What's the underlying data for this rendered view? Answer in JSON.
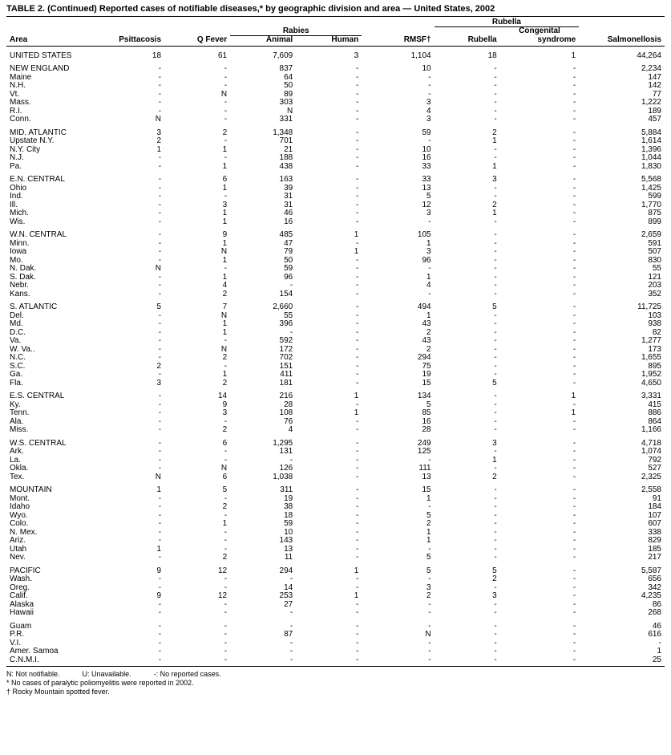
{
  "title": "TABLE 2. (Continued) Reported cases of notifiable diseases,* by geographic division and area — United States, 2002",
  "superheaders": {
    "rabies": "Rabies",
    "rubella": "Rubella"
  },
  "columns": [
    "Area",
    "Psittacosis",
    "Q Fever",
    "Animal",
    "Human",
    "RMSF†",
    "Rubella",
    "Congenital syndrome",
    "Salmonellosis"
  ],
  "groups": [
    [
      [
        "UNITED STATES",
        "18",
        "61",
        "7,609",
        "3",
        "1,104",
        "18",
        "1",
        "44,264"
      ]
    ],
    [
      [
        "NEW ENGLAND",
        "-",
        "-",
        "837",
        "-",
        "10",
        "-",
        "-",
        "2,234"
      ],
      [
        "Maine",
        "-",
        "-",
        "64",
        "-",
        "-",
        "-",
        "-",
        "147"
      ],
      [
        "N.H.",
        "-",
        "-",
        "50",
        "-",
        "-",
        "-",
        "-",
        "142"
      ],
      [
        "Vt.",
        "-",
        "N",
        "89",
        "-",
        "-",
        "-",
        "-",
        "77"
      ],
      [
        "Mass.",
        "-",
        "-",
        "303",
        "-",
        "3",
        "-",
        "-",
        "1,222"
      ],
      [
        "R.I.",
        "-",
        "-",
        "N",
        "-",
        "4",
        "-",
        "-",
        "189"
      ],
      [
        "Conn.",
        "N",
        "-",
        "331",
        "-",
        "3",
        "-",
        "-",
        "457"
      ]
    ],
    [
      [
        "MID. ATLANTIC",
        "3",
        "2",
        "1,348",
        "-",
        "59",
        "2",
        "-",
        "5,884"
      ],
      [
        "Upstate N.Y.",
        "2",
        "-",
        "701",
        "-",
        "-",
        "1",
        "-",
        "1,614"
      ],
      [
        "N.Y. City",
        "1",
        "1",
        "21",
        "-",
        "10",
        "-",
        "-",
        "1,396"
      ],
      [
        "N.J.",
        "-",
        "-",
        "188",
        "-",
        "16",
        "-",
        "-",
        "1,044"
      ],
      [
        "Pa.",
        "-",
        "1",
        "438",
        "-",
        "33",
        "1",
        "-",
        "1,830"
      ]
    ],
    [
      [
        "E.N. CENTRAL",
        "-",
        "6",
        "163",
        "-",
        "33",
        "3",
        "-",
        "5,568"
      ],
      [
        "Ohio",
        "-",
        "1",
        "39",
        "-",
        "13",
        "-",
        "-",
        "1,425"
      ],
      [
        "Ind.",
        "-",
        "-",
        "31",
        "-",
        "5",
        "-",
        "-",
        "599"
      ],
      [
        "Ill.",
        "-",
        "3",
        "31",
        "-",
        "12",
        "2",
        "-",
        "1,770"
      ],
      [
        "Mich.",
        "-",
        "1",
        "46",
        "-",
        "3",
        "1",
        "-",
        "875"
      ],
      [
        "Wis.",
        "-",
        "1",
        "16",
        "-",
        "-",
        "-",
        "-",
        "899"
      ]
    ],
    [
      [
        "W.N. CENTRAL",
        "-",
        "9",
        "485",
        "1",
        "105",
        "-",
        "-",
        "2,659"
      ],
      [
        "Minn.",
        "-",
        "1",
        "47",
        "-",
        "1",
        "-",
        "-",
        "591"
      ],
      [
        "Iowa",
        "-",
        "N",
        "79",
        "1",
        "3",
        "-",
        "-",
        "507"
      ],
      [
        "Mo.",
        "-",
        "1",
        "50",
        "-",
        "96",
        "-",
        "-",
        "830"
      ],
      [
        "N. Dak.",
        "N",
        "-",
        "59",
        "-",
        "-",
        "-",
        "-",
        "55"
      ],
      [
        "S. Dak.",
        "-",
        "1",
        "96",
        "-",
        "1",
        "-",
        "-",
        "121"
      ],
      [
        "Nebr.",
        "-",
        "4",
        "-",
        "-",
        "4",
        "-",
        "-",
        "203"
      ],
      [
        "Kans.",
        "-",
        "2",
        "154",
        "-",
        "-",
        "-",
        "-",
        "352"
      ]
    ],
    [
      [
        "S. ATLANTIC",
        "5",
        "7",
        "2,660",
        "-",
        "494",
        "5",
        "-",
        "11,725"
      ],
      [
        "Del.",
        "-",
        "N",
        "55",
        "-",
        "1",
        "-",
        "-",
        "103"
      ],
      [
        "Md.",
        "-",
        "1",
        "396",
        "-",
        "43",
        "-",
        "-",
        "938"
      ],
      [
        "D.C.",
        "-",
        "1",
        "-",
        "-",
        "2",
        "-",
        "-",
        "82"
      ],
      [
        "Va.",
        "-",
        "-",
        "592",
        "-",
        "43",
        "-",
        "-",
        "1,277"
      ],
      [
        "W. Va..",
        "-",
        "N",
        "172",
        "-",
        "2",
        "-",
        "-",
        "173"
      ],
      [
        "N.C.",
        "-",
        "2",
        "702",
        "-",
        "294",
        "-",
        "-",
        "1,655"
      ],
      [
        "S.C.",
        "2",
        "-",
        "151",
        "-",
        "75",
        "-",
        "-",
        "895"
      ],
      [
        "Ga.",
        "-",
        "1",
        "411",
        "-",
        "19",
        "-",
        "-",
        "1,952"
      ],
      [
        "Fla.",
        "3",
        "2",
        "181",
        "-",
        "15",
        "5",
        "-",
        "4,650"
      ]
    ],
    [
      [
        "E.S. CENTRAL",
        "-",
        "14",
        "216",
        "1",
        "134",
        "-",
        "1",
        "3,331"
      ],
      [
        "Ky.",
        "-",
        "9",
        "28",
        "-",
        "5",
        "-",
        "-",
        "415"
      ],
      [
        "Tenn.",
        "-",
        "3",
        "108",
        "1",
        "85",
        "-",
        "1",
        "886"
      ],
      [
        "Ala.",
        "-",
        "-",
        "76",
        "-",
        "16",
        "-",
        "-",
        "864"
      ],
      [
        "Miss.",
        "-",
        "2",
        "4",
        "-",
        "28",
        "-",
        "-",
        "1,166"
      ]
    ],
    [
      [
        "W.S. CENTRAL",
        "-",
        "6",
        "1,295",
        "-",
        "249",
        "3",
        "-",
        "4,718"
      ],
      [
        "Ark.",
        "-",
        "-",
        "131",
        "-",
        "125",
        "-",
        "-",
        "1,074"
      ],
      [
        "La.",
        "-",
        "-",
        "-",
        "-",
        "-",
        "1",
        "-",
        "792"
      ],
      [
        "Okla.",
        "-",
        "N",
        "126",
        "-",
        "111",
        "-",
        "-",
        "527"
      ],
      [
        "Tex.",
        "N",
        "6",
        "1,038",
        "-",
        "13",
        "2",
        "-",
        "2,325"
      ]
    ],
    [
      [
        "MOUNTAIN",
        "1",
        "5",
        "311",
        "-",
        "15",
        "-",
        "-",
        "2,558"
      ],
      [
        "Mont.",
        "-",
        "-",
        "19",
        "-",
        "1",
        "-",
        "-",
        "91"
      ],
      [
        "Idaho",
        "-",
        "2",
        "38",
        "-",
        "-",
        "-",
        "-",
        "184"
      ],
      [
        "Wyo.",
        "-",
        "-",
        "18",
        "-",
        "5",
        "-",
        "-",
        "107"
      ],
      [
        "Colo.",
        "-",
        "1",
        "59",
        "-",
        "2",
        "-",
        "-",
        "607"
      ],
      [
        "N. Mex.",
        "-",
        "-",
        "10",
        "-",
        "1",
        "-",
        "-",
        "338"
      ],
      [
        "Ariz.",
        "-",
        "-",
        "143",
        "-",
        "1",
        "-",
        "-",
        "829"
      ],
      [
        "Utah",
        "1",
        "-",
        "13",
        "-",
        "-",
        "-",
        "-",
        "185"
      ],
      [
        "Nev.",
        "-",
        "2",
        "11",
        "-",
        "5",
        "-",
        "-",
        "217"
      ]
    ],
    [
      [
        "PACIFIC",
        "9",
        "12",
        "294",
        "1",
        "5",
        "5",
        "-",
        "5,587"
      ],
      [
        "Wash.",
        "-",
        "-",
        "-",
        "-",
        "-",
        "2",
        "-",
        "656"
      ],
      [
        "Oreg.",
        "-",
        "-",
        "14",
        "-",
        "3",
        "-",
        "-",
        "342"
      ],
      [
        "Calif.",
        "9",
        "12",
        "253",
        "1",
        "2",
        "3",
        "-",
        "4,235"
      ],
      [
        "Alaska",
        "-",
        "-",
        "27",
        "-",
        "-",
        "-",
        "-",
        "86"
      ],
      [
        "Hawaii",
        "-",
        "-",
        "-",
        "-",
        "-",
        "-",
        "-",
        "268"
      ]
    ],
    [
      [
        "Guam",
        "-",
        "-",
        "-",
        "-",
        "-",
        "-",
        "-",
        "46"
      ],
      [
        "P.R.",
        "-",
        "-",
        "87",
        "-",
        "N",
        "-",
        "-",
        "616"
      ],
      [
        "V.I.",
        "-",
        "-",
        "-",
        "-",
        "-",
        "-",
        "-",
        "-"
      ],
      [
        "Amer. Samoa",
        "-",
        "-",
        "-",
        "-",
        "-",
        "-",
        "-",
        "1"
      ],
      [
        "C.N.M.I.",
        "-",
        "-",
        "-",
        "-",
        "-",
        "-",
        "-",
        "25"
      ]
    ]
  ],
  "footnotes": {
    "legend": [
      [
        "N: Not notifiable.",
        "U: Unavailable.",
        "-: No reported cases."
      ]
    ],
    "lines": [
      "* No cases of paralytic poliomyelitis were reported in 2002.",
      "† Rocky Mountain spotted fever."
    ]
  },
  "colwidths": [
    "14%",
    "10%",
    "10%",
    "10%",
    "10%",
    "11%",
    "10%",
    "12%",
    "13%"
  ]
}
